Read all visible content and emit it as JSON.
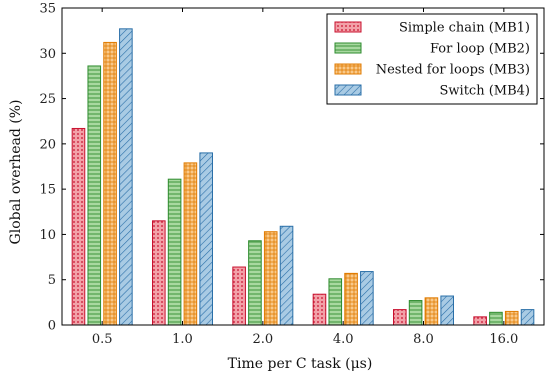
{
  "chart_data": {
    "type": "bar",
    "xlabel": "Time per C task (μs)",
    "ylabel": "Global overhead (%)",
    "ylim": [
      0,
      35
    ],
    "yticks": [
      0,
      5,
      10,
      15,
      20,
      25,
      30,
      35
    ],
    "categories": [
      "0.5",
      "1.0",
      "2.0",
      "4.0",
      "8.0",
      "16.0"
    ],
    "grid": false,
    "legend_position": "top-right",
    "series": [
      {
        "name": "Simple chain (MB1)",
        "pattern": "dots",
        "fill": "#f2a1a8",
        "stroke": "#c8102e",
        "values": [
          21.7,
          11.5,
          6.4,
          3.4,
          1.7,
          0.9
        ]
      },
      {
        "name": "For loop (MB2)",
        "pattern": "hlines",
        "fill": "#a8d8a0",
        "stroke": "#2e8b2e",
        "values": [
          28.6,
          16.1,
          9.3,
          5.1,
          2.7,
          1.4
        ]
      },
      {
        "name": "Nested for loops (MB3)",
        "pattern": "grid",
        "fill": "#f9c98a",
        "stroke": "#e07b00",
        "values": [
          31.2,
          17.9,
          10.3,
          5.7,
          3.0,
          1.5
        ]
      },
      {
        "name": "Switch (MB4)",
        "pattern": "diag",
        "fill": "#a9cbe4",
        "stroke": "#2a6fa8",
        "values": [
          32.7,
          19.0,
          10.9,
          5.9,
          3.2,
          1.7
        ]
      }
    ]
  }
}
